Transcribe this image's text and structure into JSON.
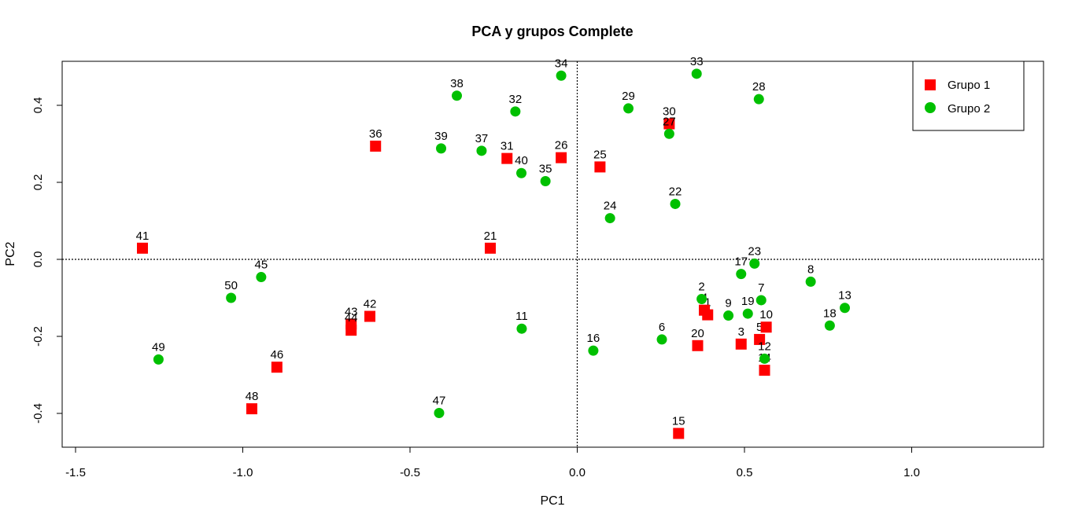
{
  "chart_data": {
    "type": "scatter",
    "title": "PCA y grupos Complete",
    "xlabel": "PC1",
    "ylabel": "PC2",
    "xlim": [
      -1.5,
      1.0
    ],
    "ylim": [
      -0.45,
      0.5
    ],
    "xticks": [
      "-1.5",
      "-1.0",
      "-0.5",
      "0.0",
      "0.5",
      "1.0"
    ],
    "yticks": [
      "-0.4",
      "-0.2",
      "0.0",
      "0.2",
      "0.4"
    ],
    "reference_lines": {
      "x": 0,
      "y": 0,
      "style": "dotted"
    },
    "legend": {
      "position": "top-right",
      "entries": [
        {
          "label": "Grupo 1",
          "shape": "square",
          "color": "#ff0000"
        },
        {
          "label": "Grupo 2",
          "shape": "circle",
          "color": "#00c000"
        }
      ]
    },
    "series": [
      {
        "name": "Grupo 1",
        "color": "#ff0000",
        "shape": "square",
        "points": [
          {
            "label": "1",
            "x": 0.39,
            "y": -0.144
          },
          {
            "label": "3",
            "x": 0.49,
            "y": -0.22
          },
          {
            "label": "4",
            "x": 0.38,
            "y": -0.132
          },
          {
            "label": "5",
            "x": 0.545,
            "y": -0.208
          },
          {
            "label": "10",
            "x": 0.565,
            "y": -0.176
          },
          {
            "label": "14",
            "x": 0.56,
            "y": -0.288
          },
          {
            "label": "15",
            "x": 0.303,
            "y": -0.452
          },
          {
            "label": "20",
            "x": 0.36,
            "y": -0.224
          },
          {
            "label": "21",
            "x": -0.26,
            "y": 0.029
          },
          {
            "label": "25",
            "x": 0.068,
            "y": 0.24
          },
          {
            "label": "26",
            "x": -0.048,
            "y": 0.264
          },
          {
            "label": "30",
            "x": 0.275,
            "y": 0.352
          },
          {
            "label": "31",
            "x": -0.21,
            "y": 0.262
          },
          {
            "label": "36",
            "x": -0.603,
            "y": 0.294
          },
          {
            "label": "41",
            "x": -1.3,
            "y": 0.029
          },
          {
            "label": "42",
            "x": -0.62,
            "y": -0.148
          },
          {
            "label": "43",
            "x": -0.676,
            "y": -0.168
          },
          {
            "label": "44",
            "x": -0.676,
            "y": -0.184
          },
          {
            "label": "46",
            "x": -0.898,
            "y": -0.28
          },
          {
            "label": "48",
            "x": -0.973,
            "y": -0.388
          }
        ]
      },
      {
        "name": "Grupo 2",
        "color": "#00c000",
        "shape": "circle",
        "points": [
          {
            "label": "2",
            "x": 0.372,
            "y": -0.103
          },
          {
            "label": "6",
            "x": 0.253,
            "y": -0.208
          },
          {
            "label": "7",
            "x": 0.55,
            "y": -0.106
          },
          {
            "label": "8",
            "x": 0.698,
            "y": -0.058
          },
          {
            "label": "9",
            "x": 0.452,
            "y": -0.146
          },
          {
            "label": "11",
            "x": -0.166,
            "y": -0.18
          },
          {
            "label": "12",
            "x": 0.56,
            "y": -0.258
          },
          {
            "label": "13",
            "x": 0.8,
            "y": -0.126
          },
          {
            "label": "16",
            "x": 0.048,
            "y": -0.237
          },
          {
            "label": "17",
            "x": 0.49,
            "y": -0.038
          },
          {
            "label": "18",
            "x": 0.755,
            "y": -0.172
          },
          {
            "label": "19",
            "x": 0.51,
            "y": -0.141
          },
          {
            "label": "22",
            "x": 0.293,
            "y": 0.144
          },
          {
            "label": "23",
            "x": 0.53,
            "y": -0.011
          },
          {
            "label": "24",
            "x": 0.098,
            "y": 0.107
          },
          {
            "label": "27",
            "x": 0.275,
            "y": 0.326
          },
          {
            "label": "28",
            "x": 0.543,
            "y": 0.416
          },
          {
            "label": "29",
            "x": 0.153,
            "y": 0.392
          },
          {
            "label": "32",
            "x": -0.185,
            "y": 0.384
          },
          {
            "label": "33",
            "x": 0.357,
            "y": 0.482
          },
          {
            "label": "34",
            "x": -0.048,
            "y": 0.477
          },
          {
            "label": "35",
            "x": -0.095,
            "y": 0.203
          },
          {
            "label": "37",
            "x": -0.286,
            "y": 0.282
          },
          {
            "label": "38",
            "x": -0.36,
            "y": 0.425
          },
          {
            "label": "39",
            "x": -0.407,
            "y": 0.288
          },
          {
            "label": "40",
            "x": -0.167,
            "y": 0.224
          },
          {
            "label": "45",
            "x": -0.945,
            "y": -0.046
          },
          {
            "label": "47",
            "x": -0.413,
            "y": -0.399
          },
          {
            "label": "49",
            "x": -1.252,
            "y": -0.26
          },
          {
            "label": "50",
            "x": -1.035,
            "y": -0.1
          }
        ]
      }
    ]
  }
}
